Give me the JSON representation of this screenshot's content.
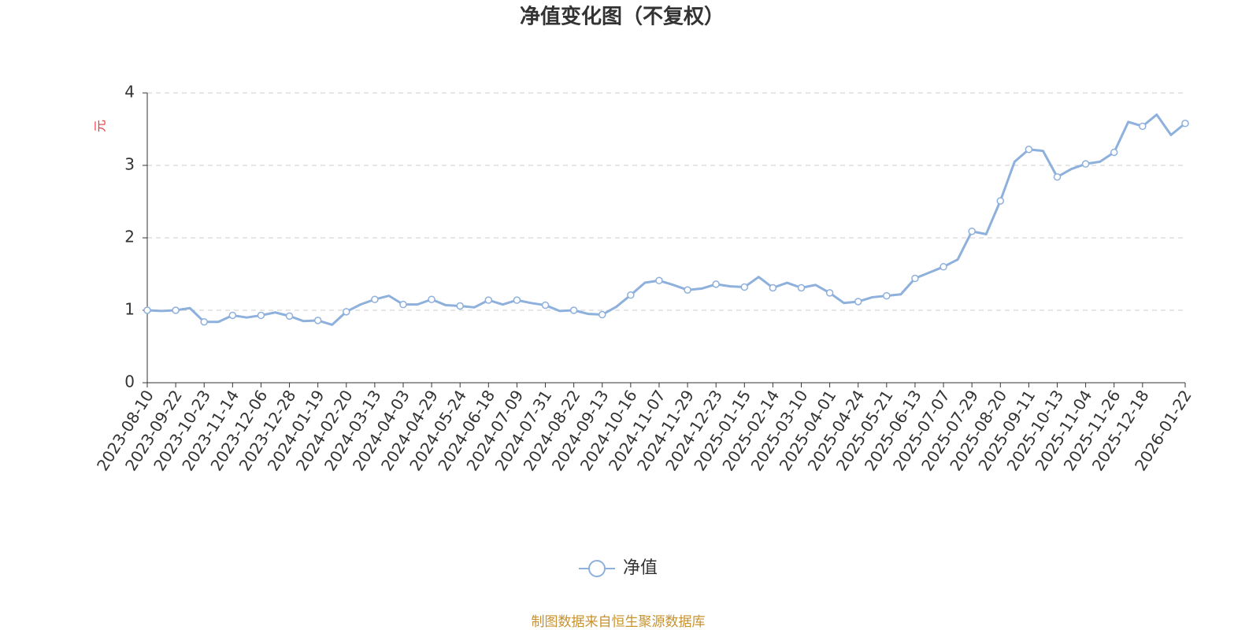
{
  "chart_data": {
    "type": "line",
    "title": "净值变化图（不复权）",
    "y_label": "元",
    "source": "制图数据来自恒生聚源数据库",
    "categories": [
      "2023-08-10",
      null,
      "2023-09-22",
      null,
      "2023-10-23",
      null,
      "2023-11-14",
      null,
      "2023-12-06",
      null,
      "2023-12-28",
      null,
      "2024-01-19",
      null,
      "2024-02-20",
      null,
      "2024-03-13",
      null,
      "2024-04-03",
      null,
      "2024-04-29",
      null,
      "2024-05-24",
      null,
      "2024-06-18",
      null,
      "2024-07-09",
      null,
      "2024-07-31",
      null,
      "2024-08-22",
      null,
      "2024-09-13",
      null,
      "2024-10-16",
      null,
      "2024-11-07",
      null,
      "2024-11-29",
      null,
      "2024-12-23",
      null,
      "2025-01-15",
      null,
      "2025-02-14",
      null,
      "2025-03-10",
      null,
      "2025-04-01",
      null,
      "2025-04-24",
      null,
      "2025-05-21",
      null,
      "2025-06-13",
      null,
      "2025-07-07",
      null,
      "2025-07-29",
      null,
      "2025-08-20",
      null,
      "2025-09-11",
      null,
      "2025-10-13",
      null,
      "2025-11-04",
      null,
      "2025-11-26",
      null,
      "2025-12-18",
      null,
      null,
      "2026-01-22"
    ],
    "series": [
      {
        "name": "净值",
        "color": "#8eb0dc",
        "values": [
          1.0,
          0.99,
          1.0,
          1.03,
          0.84,
          0.84,
          0.93,
          0.9,
          0.93,
          0.97,
          0.92,
          0.85,
          0.86,
          0.8,
          0.98,
          1.08,
          1.15,
          1.2,
          1.08,
          1.08,
          1.15,
          1.07,
          1.06,
          1.04,
          1.14,
          1.08,
          1.14,
          1.1,
          1.07,
          0.99,
          1.0,
          0.95,
          0.94,
          1.05,
          1.21,
          1.38,
          1.41,
          1.35,
          1.28,
          1.3,
          1.36,
          1.33,
          1.32,
          1.46,
          1.31,
          1.38,
          1.31,
          1.35,
          1.24,
          1.1,
          1.12,
          1.18,
          1.2,
          1.22,
          1.44,
          1.52,
          1.6,
          1.7,
          2.09,
          2.05,
          2.51,
          3.05,
          3.22,
          3.2,
          2.84,
          2.95,
          3.02,
          3.05,
          3.18,
          3.6,
          3.54,
          3.7,
          3.42,
          3.58
        ]
      }
    ],
    "ylim": [
      0,
      4
    ],
    "yticks": [
      0,
      1,
      2,
      3,
      4
    ],
    "grid": true
  }
}
